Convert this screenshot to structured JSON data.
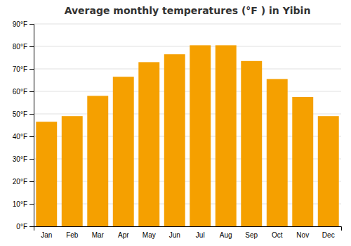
{
  "chart_data": {
    "type": "bar",
    "title": "Average monthly temperatures (°F ) in Yibin",
    "categories": [
      "Jan",
      "Feb",
      "Mar",
      "Apr",
      "May",
      "Jun",
      "Jul",
      "Aug",
      "Sep",
      "Oct",
      "Nov",
      "Dec"
    ],
    "values": [
      46.5,
      49.0,
      58.0,
      66.5,
      73.0,
      76.5,
      80.5,
      80.5,
      73.5,
      65.5,
      57.5,
      49.0
    ],
    "color": "#F5A000",
    "ylim": [
      0,
      90
    ],
    "yticks": [
      {
        "value": 0,
        "label": "0°F"
      },
      {
        "value": 10,
        "label": "10°F"
      },
      {
        "value": 20,
        "label": "20°F"
      },
      {
        "value": 30,
        "label": "30°F"
      },
      {
        "value": 40,
        "label": "40°F"
      },
      {
        "value": 50,
        "label": "50°F"
      },
      {
        "value": 60,
        "label": "60°F"
      },
      {
        "value": 70,
        "label": "70°F"
      },
      {
        "value": 80,
        "label": "80°F"
      },
      {
        "value": 90,
        "label": "90°F"
      }
    ],
    "grid": true
  }
}
